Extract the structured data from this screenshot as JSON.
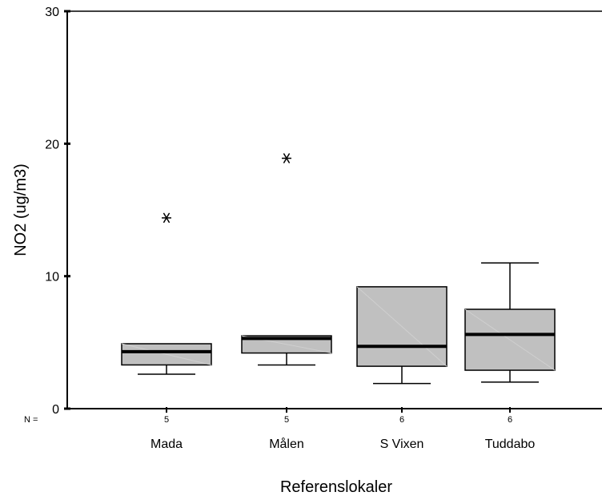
{
  "chart_data": {
    "type": "boxplot",
    "ylabel": "NO2 (ug/m3)",
    "xlabel": "Referenslokaler",
    "ylim": [
      0,
      30
    ],
    "yticks": [
      "0",
      "10",
      "20",
      "30"
    ],
    "n_prefix": "N =",
    "grid": false,
    "box_fill": "#c0c0c0",
    "categories": [
      {
        "name": "Mada",
        "n": "5",
        "whisker_low": 2.6,
        "q1": 3.3,
        "median": 4.3,
        "q3": 4.9,
        "whisker_high": 4.9,
        "outliers": [
          14.4
        ]
      },
      {
        "name": "Målen",
        "n": "5",
        "whisker_low": 3.3,
        "q1": 4.2,
        "median": 5.3,
        "q3": 5.5,
        "whisker_high": 5.5,
        "outliers": [
          18.9
        ]
      },
      {
        "name": "S Vixen",
        "n": "6",
        "whisker_low": 1.9,
        "q1": 3.2,
        "median": 4.7,
        "q3": 9.2,
        "whisker_high": 9.2,
        "outliers": []
      },
      {
        "name": "Tuddabo",
        "n": "6",
        "whisker_low": 2.0,
        "q1": 2.9,
        "median": 5.6,
        "q3": 7.5,
        "whisker_high": 11.0,
        "outliers": []
      }
    ]
  }
}
